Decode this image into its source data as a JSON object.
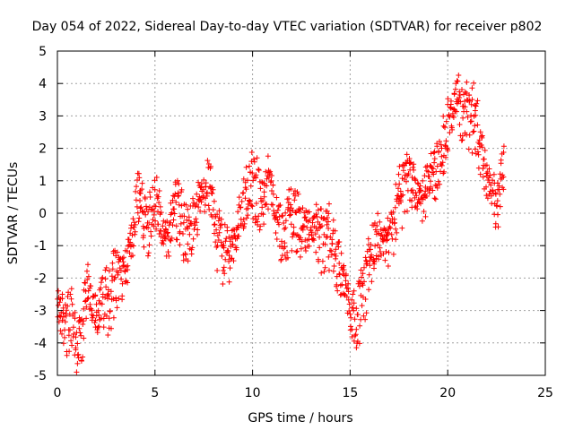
{
  "chart_data": {
    "type": "scatter",
    "title": "Day 054 of 2022, Sidereal Day-to-day VTEC variation (SDTVAR) for receiver p802",
    "xlabel": "GPS time / hours",
    "ylabel": "SDTVAR / TECUs",
    "xlim": [
      0,
      25
    ],
    "ylim": [
      -5,
      5
    ],
    "xticks": [
      "0",
      "5",
      "10",
      "15",
      "20",
      "25"
    ],
    "yticks": [
      "-5",
      "-4",
      "-3",
      "-2",
      "-1",
      "0",
      "1",
      "2",
      "3",
      "4",
      "5"
    ],
    "grid": true,
    "marker": "+",
    "color": "#ff0000",
    "series": [
      {
        "name": "SDTVAR",
        "trace_x": [
          0.0,
          0.3,
          0.5,
          0.7,
          0.9,
          1.0,
          1.2,
          1.4,
          1.5,
          1.8,
          2.0,
          2.2,
          2.4,
          2.6,
          2.8,
          3.0,
          3.2,
          3.5,
          3.7,
          3.9,
          4.0,
          4.2,
          4.4,
          4.6,
          4.8,
          5.0,
          5.2,
          5.4,
          5.6,
          5.8,
          6.0,
          6.3,
          6.6,
          6.9,
          7.2,
          7.5,
          7.8,
          8.0,
          8.2,
          8.4,
          8.6,
          8.8,
          9.0,
          9.2,
          9.4,
          9.6,
          9.8,
          10.0,
          10.2,
          10.4,
          10.6,
          10.8,
          11.0,
          11.2,
          11.5,
          11.8,
          12.0,
          12.3,
          12.6,
          12.9,
          13.2,
          13.5,
          13.8,
          14.0,
          14.3,
          14.6,
          14.9,
          15.1,
          15.3,
          15.5,
          15.7,
          15.9,
          16.1,
          16.3,
          16.5,
          16.7,
          16.9,
          17.1,
          17.3,
          17.5,
          17.8,
          18.0,
          18.3,
          18.6,
          18.9,
          19.2,
          19.5,
          19.8,
          20.0,
          20.2,
          20.4,
          20.5,
          20.7,
          20.9,
          21.1,
          21.3,
          21.5,
          21.7,
          21.9,
          22.1,
          22.3,
          22.5,
          22.7,
          22.9
        ],
        "trace_y": [
          -2.7,
          -3.0,
          -3.2,
          -3.0,
          -3.6,
          -4.1,
          -3.6,
          -2.6,
          -2.0,
          -2.7,
          -3.0,
          -2.5,
          -2.2,
          -2.5,
          -2.0,
          -1.7,
          -1.8,
          -1.5,
          -0.8,
          -0.3,
          0.4,
          0.8,
          0.6,
          -0.4,
          0.1,
          0.6,
          0.2,
          -0.3,
          -0.8,
          -0.2,
          0.5,
          0.3,
          -0.5,
          -0.2,
          0.4,
          0.9,
          1.1,
          0.4,
          -0.5,
          -0.9,
          -1.0,
          -1.3,
          -0.7,
          -0.3,
          0.2,
          0.6,
          1.0,
          1.3,
          1.1,
          0.8,
          0.9,
          1.2,
          0.8,
          0.1,
          -0.5,
          -0.2,
          0.3,
          0.0,
          -0.5,
          -0.4,
          -0.1,
          -0.5,
          -0.7,
          -0.4,
          -1.1,
          -1.8,
          -2.4,
          -2.9,
          -3.1,
          -2.6,
          -2.0,
          -1.5,
          -1.0,
          -0.6,
          -0.5,
          -0.8,
          -0.7,
          -0.3,
          0.3,
          0.8,
          0.9,
          1.3,
          1.1,
          0.5,
          1.0,
          1.5,
          1.9,
          2.5,
          3.0,
          3.3,
          3.6,
          3.9,
          3.2,
          3.6,
          3.1,
          3.4,
          2.9,
          2.2,
          1.6,
          1.2,
          0.8,
          0.4,
          0.9,
          1.6
        ],
        "band_offsets": [
          -0.9,
          -0.55,
          -0.2,
          0.0,
          0.3,
          0.6,
          -1.3
        ]
      }
    ]
  }
}
